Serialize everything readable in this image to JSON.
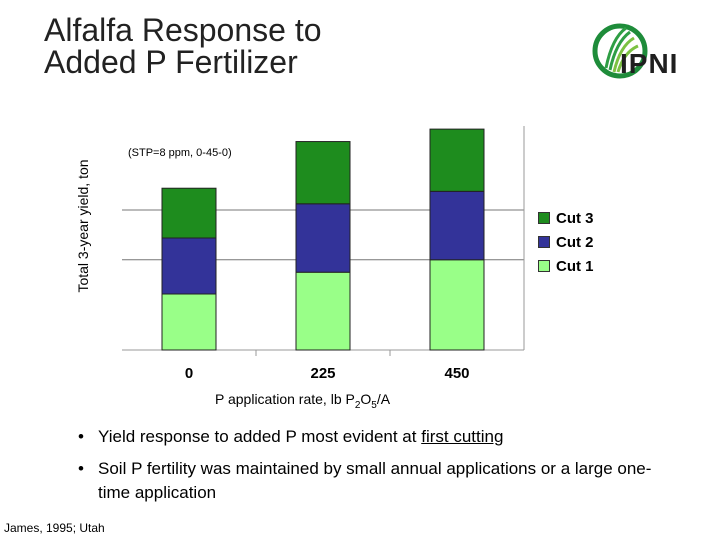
{
  "slide": {
    "title_line1": "Alfalfa Response to",
    "title_line2": "Added P Fertilizer",
    "logo_text": "IPNI",
    "source": "James, 1995; Utah"
  },
  "colors": {
    "cut1": "#99ff88",
    "cut2": "#333399",
    "cut3": "#1e8c1e"
  },
  "chart_data": {
    "type": "bar",
    "stacked": true,
    "categories": [
      "0",
      "225",
      "450"
    ],
    "series": [
      {
        "name": "Cut 1",
        "values": [
          1.8,
          2.5,
          2.9
        ]
      },
      {
        "name": "Cut 2",
        "values": [
          1.8,
          2.2,
          2.2
        ]
      },
      {
        "name": "Cut 3",
        "values": [
          1.6,
          2.0,
          2.0
        ]
      }
    ],
    "ylim": [
      0,
      7.2
    ],
    "ylabel": "Total 3-year yield, ton",
    "xlabel_main": "P application rate, lb P",
    "xlabel_sub1": "2",
    "xlabel_mid": "O",
    "xlabel_sub2": "5",
    "xlabel_end": "/A",
    "annotation": "(STP=8 ppm, 0-45-0)",
    "legend_order": [
      "Cut 3",
      "Cut 2",
      "Cut 1"
    ],
    "legend_position": "right",
    "grid": true
  },
  "bullets": [
    {
      "text": "Yield response to added P most evident at ",
      "underlined": "first cutting"
    },
    {
      "text": "Soil P fertility was maintained by small annual applications or a large one-time application",
      "underlined": ""
    }
  ]
}
